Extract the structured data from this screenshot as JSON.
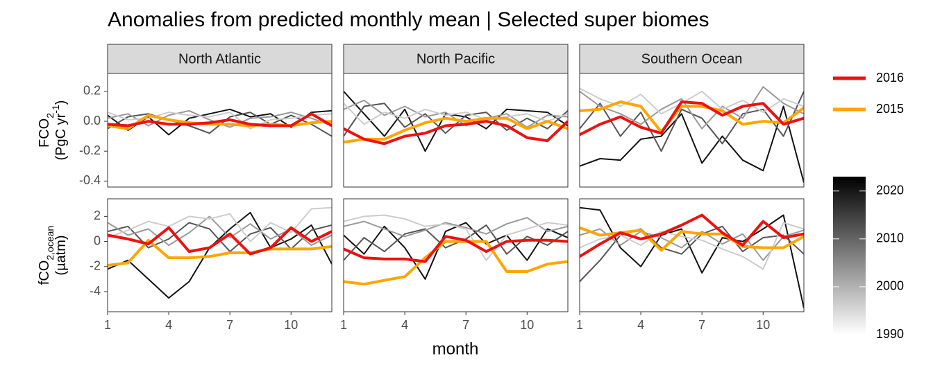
{
  "title": "Anomalies from predicted monthly mean | Selected super biomes",
  "xlabel": "month",
  "legend": [
    {
      "name": "2016",
      "color": "#ee1111"
    },
    {
      "name": "2015",
      "color": "#ffa500"
    }
  ],
  "colorbar": {
    "lim": [
      1990,
      2023
    ],
    "ticks": [
      1990,
      2000,
      2010,
      2020
    ],
    "colors": [
      "#ffffff",
      "#000000"
    ]
  },
  "chart_data": [
    {
      "type": "line",
      "title": "North Atlantic",
      "ylabel": [
        [
          {
            "t": "FCO"
          },
          {
            "t": "2",
            "s": "sub"
          }
        ],
        [
          {
            "t": "(PgC yr"
          },
          {
            "t": "-1",
            "s": "sup"
          },
          {
            "t": ")"
          }
        ]
      ],
      "x": [
        1,
        2,
        3,
        4,
        5,
        6,
        7,
        8,
        9,
        10,
        11,
        12
      ],
      "xlim": [
        1,
        12
      ],
      "ylim": [
        -0.44,
        0.32
      ],
      "yticks": [
        {
          "value": 0.2,
          "label": "0.2"
        },
        {
          "value": 0,
          "label": "0.0"
        },
        {
          "value": -0.2,
          "label": "-0.2"
        },
        {
          "value": -0.4,
          "label": "-0.4"
        }
      ],
      "series": [
        {
          "color": "#111111",
          "values": [
            0.04,
            -0.06,
            0.03,
            -0.09,
            0.02,
            0.05,
            0.08,
            0.03,
            0.05,
            -0.04,
            0.06,
            0.07
          ]
        },
        {
          "color": "#555555",
          "values": [
            -0.05,
            0.03,
            0.05,
            0.01,
            -0.03,
            -0.08,
            0.03,
            0.06,
            -0.02,
            0.04,
            -0.02,
            -0.1
          ]
        },
        {
          "color": "#999999",
          "values": [
            0.02,
            0.05,
            -0.03,
            0.04,
            0.07,
            0.01,
            -0.04,
            0.02,
            0.03,
            0.06,
            0.02,
            -0.03
          ]
        },
        {
          "color": "#cccccc",
          "values": [
            0.06,
            0.01,
            0.02,
            0.06,
            0.04,
            0.03,
            0.06,
            -0.05,
            0.01,
            0.02,
            0.04,
            0.05
          ]
        },
        {
          "color": "#ffa500",
          "values": [
            -0.03,
            -0.05,
            0.04,
            0.01,
            -0.01,
            -0.02,
            -0.02,
            -0.03,
            -0.02,
            -0.03,
            -0.01,
            0.0
          ]
        },
        {
          "color": "#ee1111",
          "values": [
            -0.02,
            -0.03,
            0.0,
            -0.02,
            -0.02,
            -0.01,
            0.01,
            -0.02,
            -0.03,
            -0.03,
            0.05,
            -0.03
          ]
        }
      ]
    },
    {
      "type": "line",
      "title": "North Pacific",
      "x": [
        1,
        2,
        3,
        4,
        5,
        6,
        7,
        8,
        9,
        10,
        11,
        12
      ],
      "xlim": [
        1,
        12
      ],
      "ylim": [
        -0.44,
        0.32
      ],
      "series": [
        {
          "color": "#111111",
          "values": [
            0.2,
            0.05,
            -0.1,
            0.08,
            -0.2,
            0.05,
            0.03,
            -0.05,
            0.08,
            0.07,
            0.06,
            -0.03
          ]
        },
        {
          "color": "#555555",
          "values": [
            -0.1,
            0.1,
            0.12,
            -0.04,
            0.05,
            -0.08,
            0.04,
            0.06,
            -0.06,
            0.02,
            -0.05,
            0.07
          ]
        },
        {
          "color": "#999999",
          "values": [
            0.08,
            0.14,
            0.04,
            0.1,
            0.03,
            0.06,
            -0.03,
            0.02,
            0.05,
            -0.04,
            0.04,
            0.03
          ]
        },
        {
          "color": "#cccccc",
          "values": [
            0.12,
            -0.02,
            0.06,
            0.02,
            0.08,
            0.04,
            0.06,
            0.01,
            0.03,
            0.05,
            0.0,
            0.05
          ]
        },
        {
          "color": "#ffa500",
          "values": [
            -0.14,
            -0.12,
            -0.12,
            -0.06,
            -0.01,
            0.02,
            0.0,
            0.02,
            0.02,
            -0.05,
            0.0,
            -0.05
          ]
        },
        {
          "color": "#ee1111",
          "values": [
            -0.05,
            -0.12,
            -0.15,
            -0.1,
            -0.08,
            -0.03,
            -0.02,
            0.0,
            -0.03,
            -0.11,
            -0.13,
            0.0
          ]
        }
      ]
    },
    {
      "type": "line",
      "title": "Southern Ocean",
      "x": [
        1,
        2,
        3,
        4,
        5,
        6,
        7,
        8,
        9,
        10,
        11,
        12
      ],
      "xlim": [
        1,
        12
      ],
      "ylim": [
        -0.44,
        0.32
      ],
      "series": [
        {
          "color": "#111111",
          "values": [
            -0.3,
            -0.25,
            -0.26,
            -0.12,
            -0.1,
            0.05,
            -0.28,
            -0.1,
            -0.26,
            -0.33,
            0.1,
            -0.41
          ]
        },
        {
          "color": "#555555",
          "values": [
            -0.05,
            0.12,
            -0.1,
            0.06,
            -0.2,
            0.08,
            0.02,
            -0.15,
            0.05,
            0.08,
            -0.1,
            0.2
          ]
        },
        {
          "color": "#999999",
          "values": [
            0.2,
            0.1,
            0.05,
            -0.02,
            0.08,
            0.15,
            -0.05,
            0.1,
            0.02,
            0.23,
            0.12,
            0.05
          ]
        },
        {
          "color": "#cccccc",
          "values": [
            0.22,
            0.15,
            0.1,
            0.18,
            0.05,
            0.12,
            0.2,
            0.08,
            0.14,
            0.06,
            0.15,
            0.1
          ]
        },
        {
          "color": "#ffa500",
          "values": [
            0.07,
            0.08,
            0.13,
            0.1,
            -0.07,
            0.1,
            0.1,
            0.07,
            -0.02,
            0.0,
            -0.01,
            0.09
          ]
        },
        {
          "color": "#ee1111",
          "values": [
            -0.09,
            -0.02,
            0.03,
            -0.04,
            -0.08,
            0.13,
            0.12,
            0.04,
            0.1,
            0.12,
            -0.02,
            0.02
          ]
        }
      ]
    },
    {
      "type": "line",
      "ylabel": [
        [
          {
            "t": "fCO"
          },
          {
            "t": "2,ocean",
            "s": "sub"
          }
        ],
        [
          {
            "t": "(µatm)"
          }
        ]
      ],
      "x": [
        1,
        2,
        3,
        4,
        5,
        6,
        7,
        8,
        9,
        10,
        11,
        12
      ],
      "xlim": [
        1,
        12
      ],
      "ylim": [
        -5.6,
        3.4
      ],
      "xticks": [
        1,
        4,
        7,
        10
      ],
      "yticks": [
        2,
        0,
        -2,
        -4
      ],
      "series": [
        {
          "color": "#111111",
          "values": [
            -2.2,
            -1.5,
            -3.0,
            -4.5,
            -3.2,
            -0.5,
            1.0,
            2.3,
            -0.5,
            0.2,
            1.3,
            -1.8
          ]
        },
        {
          "color": "#555555",
          "values": [
            0.8,
            1.2,
            -0.5,
            0.2,
            1.5,
            1.0,
            -0.8,
            0.6,
            1.1,
            -0.6,
            0.9,
            1.3
          ]
        },
        {
          "color": "#999999",
          "values": [
            1.5,
            0.5,
            1.0,
            -0.3,
            0.7,
            2.0,
            0.3,
            1.4,
            0.2,
            1.0,
            -0.3,
            0.5
          ]
        },
        {
          "color": "#cccccc",
          "values": [
            0.3,
            0.9,
            1.6,
            1.2,
            2.0,
            1.8,
            2.2,
            0.0,
            1.5,
            0.7,
            2.6,
            2.7
          ]
        },
        {
          "color": "#ffa500",
          "values": [
            -1.9,
            -1.7,
            0.1,
            -1.3,
            -1.3,
            -1.2,
            -0.9,
            -0.9,
            -0.6,
            -0.6,
            -0.6,
            -0.4
          ]
        },
        {
          "color": "#ee1111",
          "values": [
            0.5,
            0.2,
            -0.2,
            1.1,
            -0.8,
            -0.5,
            0.6,
            -1.0,
            -0.5,
            1.1,
            0.0,
            0.8
          ]
        }
      ]
    },
    {
      "type": "line",
      "x": [
        1,
        2,
        3,
        4,
        5,
        6,
        7,
        8,
        9,
        10,
        11,
        12
      ],
      "xlim": [
        1,
        12
      ],
      "ylim": [
        -5.6,
        3.4
      ],
      "xticks": [
        1,
        4,
        7,
        10
      ],
      "series": [
        {
          "color": "#111111",
          "values": [
            0.5,
            -1.0,
            1.2,
            -0.5,
            -3.0,
            0.8,
            1.5,
            -0.2,
            0.5,
            -1.5,
            1.0,
            0.3
          ]
        },
        {
          "color": "#555555",
          "values": [
            -1.5,
            0.3,
            -0.8,
            0.6,
            1.0,
            -0.5,
            0.2,
            1.3,
            -1.0,
            0.4,
            -0.3,
            0.8
          ]
        },
        {
          "color": "#999999",
          "values": [
            1.2,
            1.6,
            1.0,
            0.4,
            0.9,
            1.5,
            1.1,
            0.6,
            1.4,
            1.9,
            0.8,
            1.2
          ]
        },
        {
          "color": "#cccccc",
          "values": [
            1.6,
            2.0,
            2.1,
            1.8,
            1.2,
            1.4,
            1.0,
            -1.5,
            0.5,
            1.0,
            1.5,
            1.3
          ]
        },
        {
          "color": "#ffa500",
          "values": [
            -3.2,
            -3.4,
            -3.1,
            -2.8,
            -1.3,
            0.0,
            0.0,
            0.0,
            -2.4,
            -2.4,
            -1.8,
            -1.6
          ]
        },
        {
          "color": "#ee1111",
          "values": [
            -0.6,
            -1.3,
            -1.4,
            -1.4,
            -1.6,
            0.4,
            0.1,
            -0.8,
            0.0,
            0.1,
            0.1,
            0.0
          ]
        }
      ]
    },
    {
      "type": "line",
      "x": [
        1,
        2,
        3,
        4,
        5,
        6,
        7,
        8,
        9,
        10,
        11,
        12
      ],
      "xlim": [
        1,
        12
      ],
      "ylim": [
        -5.6,
        3.4
      ],
      "xticks": [
        1,
        4,
        7,
        10
      ],
      "series": [
        {
          "color": "#111111",
          "values": [
            2.7,
            2.5,
            -0.5,
            -2.0,
            0.5,
            1.0,
            -2.5,
            0.3,
            0.0,
            1.0,
            2.1,
            -5.3
          ]
        },
        {
          "color": "#555555",
          "values": [
            -3.2,
            -1.5,
            0.5,
            1.0,
            -0.5,
            -1.0,
            0.6,
            1.2,
            -0.8,
            0.3,
            0.5,
            -1.0
          ]
        },
        {
          "color": "#999999",
          "values": [
            0.5,
            1.0,
            -0.3,
            0.8,
            0.3,
            -0.5,
            0.8,
            -0.2,
            0.6,
            -1.5,
            0.4,
            0.9
          ]
        },
        {
          "color": "#cccccc",
          "values": [
            -0.5,
            0.2,
            0.5,
            -0.3,
            0.8,
            0.4,
            0.1,
            -0.6,
            -1.2,
            -2.2,
            1.5,
            1.0
          ]
        },
        {
          "color": "#ffa500",
          "values": [
            1.1,
            0.5,
            0.7,
            0.9,
            -0.7,
            0.8,
            0.6,
            0.6,
            -0.4,
            -0.5,
            -0.5,
            0.4
          ]
        },
        {
          "color": "#ee1111",
          "values": [
            -1.2,
            -0.2,
            0.7,
            0.2,
            0.6,
            1.3,
            2.1,
            0.7,
            -0.3,
            1.6,
            0.3,
            0.6
          ]
        }
      ]
    }
  ]
}
